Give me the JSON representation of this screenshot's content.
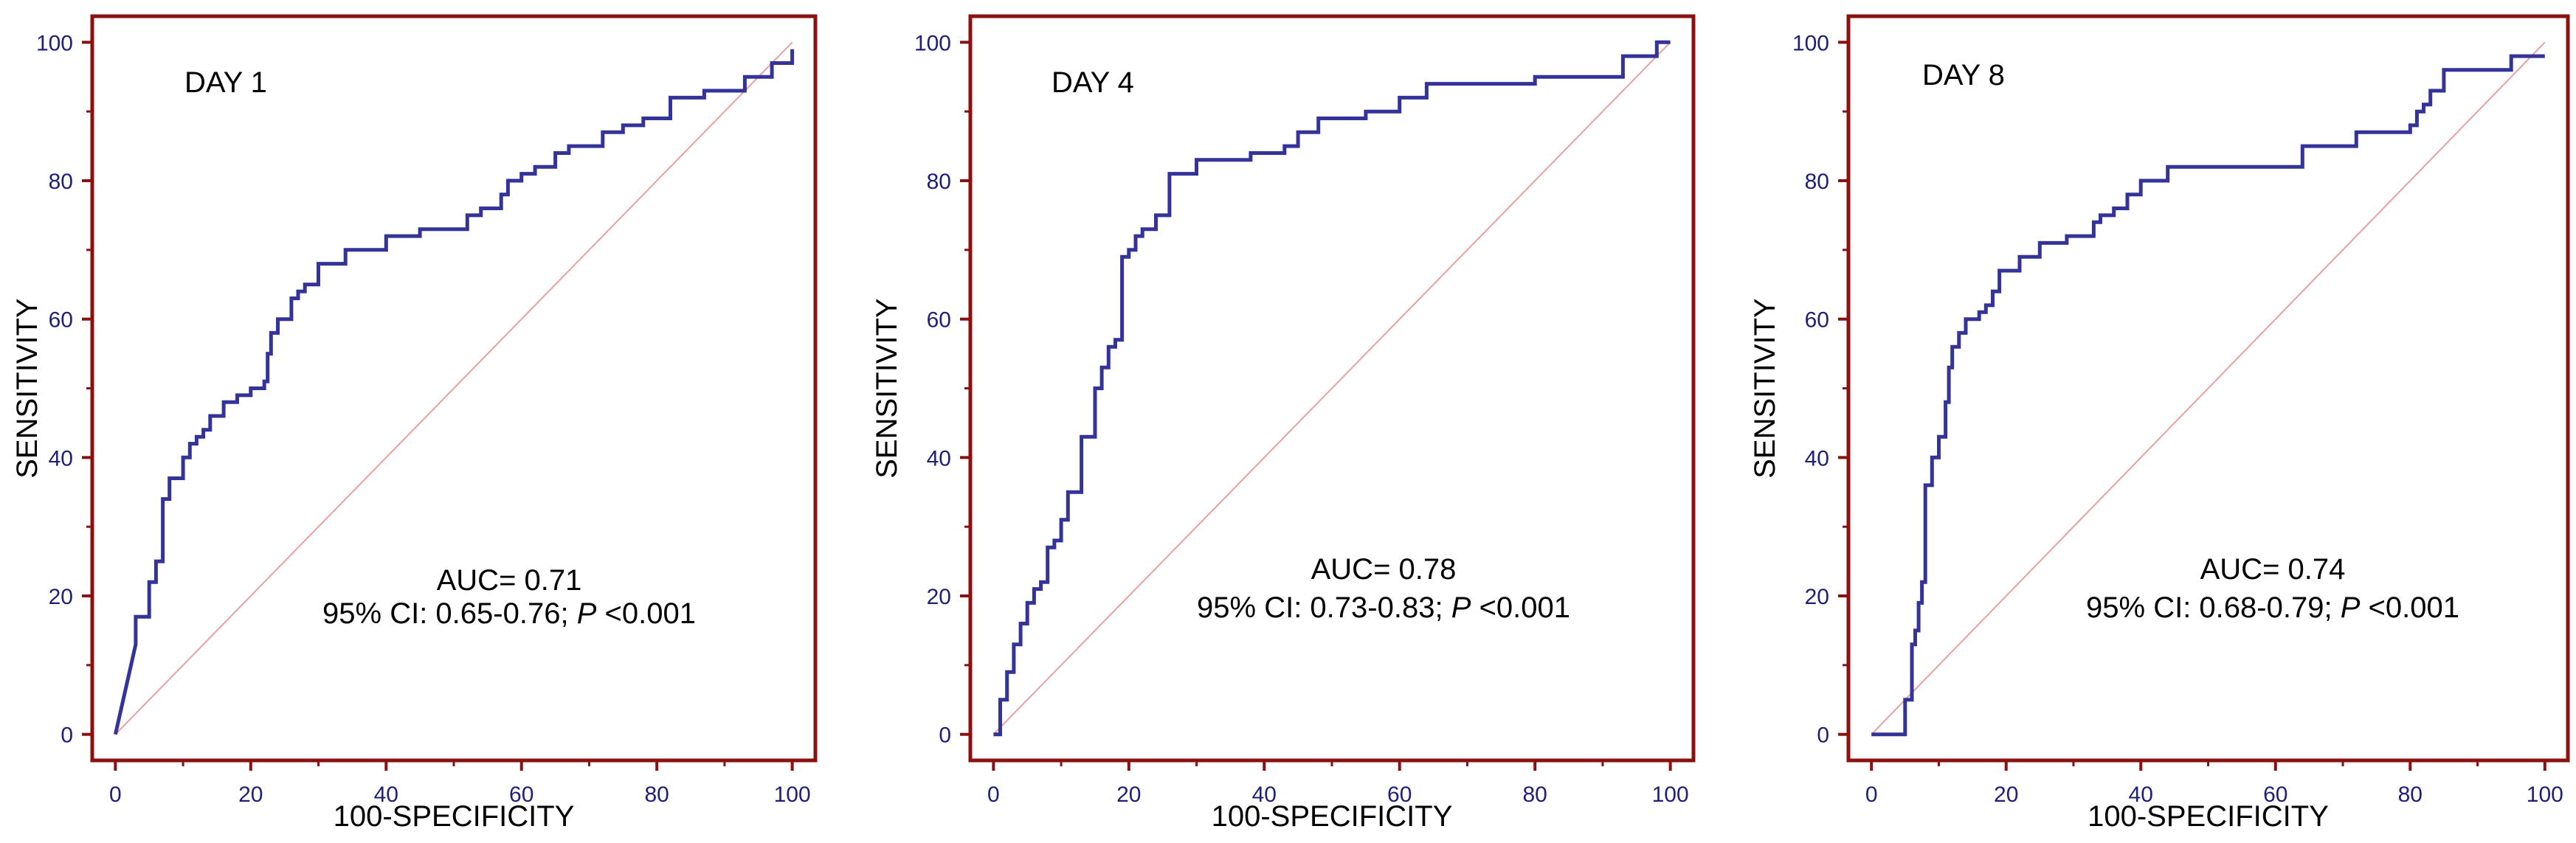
{
  "chart_data": [
    {
      "type": "line",
      "title": "DAY 1",
      "xlabel": "100-SPECIFICITY",
      "ylabel": "SENSITIVITY",
      "xlim": [
        0,
        100
      ],
      "ylim": [
        0,
        100
      ],
      "xticks": [
        "0",
        "20",
        "40",
        "60",
        "80",
        "100"
      ],
      "yticks": [
        "0",
        "20",
        "40",
        "60",
        "80",
        "100"
      ],
      "annotation_line1": "AUC= 0.71",
      "annotation_line2_prefix": "95% CI: 0.65-0.76;",
      "annotation_p_symbol": "P",
      "annotation_p_value": "<0.001",
      "reference_line": true,
      "series": [
        {
          "x": [
            0,
            3,
            3,
            5,
            5,
            6,
            6,
            7,
            7,
            8,
            8,
            10,
            10,
            11,
            11,
            12,
            12,
            13,
            13,
            14,
            14,
            16,
            16,
            18,
            18,
            20,
            20,
            22,
            22,
            22.5,
            22.5,
            23,
            23,
            24,
            24,
            26,
            26,
            27,
            27,
            28,
            28,
            30,
            30,
            34,
            34,
            36,
            36,
            40,
            40,
            45,
            45,
            52,
            52,
            54,
            54,
            57,
            57,
            58,
            58,
            60,
            60,
            62,
            62,
            65,
            65,
            67,
            67,
            72,
            72,
            75,
            75,
            78,
            78,
            82,
            82,
            87,
            87,
            93,
            93,
            97,
            97,
            100,
            100
          ],
          "y": [
            0,
            13,
            17,
            17,
            22,
            22,
            25,
            25,
            34,
            34,
            37,
            37,
            40,
            40,
            42,
            42,
            43,
            43,
            44,
            44,
            46,
            46,
            48,
            48,
            49,
            49,
            50,
            50,
            51,
            51,
            55,
            55,
            58,
            58,
            60,
            60,
            63,
            63,
            64,
            64,
            65,
            65,
            68,
            68,
            70,
            70,
            70,
            70,
            72,
            72,
            73,
            73,
            75,
            75,
            76,
            76,
            78,
            78,
            80,
            80,
            81,
            81,
            82,
            82,
            84,
            84,
            85,
            85,
            87,
            87,
            88,
            88,
            89,
            89,
            92,
            92,
            93,
            93,
            95,
            95,
            97,
            97,
            99
          ]
        }
      ]
    },
    {
      "type": "line",
      "title": "DAY 4",
      "xlabel": "100-SPECIFICITY",
      "ylabel": "SENSITIVITY",
      "xlim": [
        0,
        100
      ],
      "ylim": [
        0,
        100
      ],
      "xticks": [
        "0",
        "20",
        "40",
        "60",
        "80",
        "100"
      ],
      "yticks": [
        "0",
        "20",
        "40",
        "60",
        "80",
        "100"
      ],
      "annotation_line1": "AUC= 0.78",
      "annotation_line2_prefix": "95% CI: 0.73-0.83;",
      "annotation_p_symbol": "P",
      "annotation_p_value": "<0.001",
      "reference_line": true,
      "series": [
        {
          "x": [
            0,
            1,
            1,
            2,
            2,
            3,
            3,
            4,
            4,
            5,
            5,
            6,
            6,
            7,
            7,
            8,
            8,
            9,
            9,
            10,
            10,
            11,
            11,
            13,
            13,
            15,
            15,
            16,
            16,
            17,
            17,
            18,
            18,
            19,
            19,
            20,
            20,
            21,
            21,
            22,
            22,
            24,
            24,
            26,
            26,
            30,
            30,
            38,
            38,
            43,
            43,
            45,
            45,
            48,
            48,
            55,
            55,
            60,
            60,
            64,
            64,
            80,
            80,
            93,
            93,
            98,
            98,
            100
          ],
          "y": [
            0,
            0,
            5,
            5,
            9,
            9,
            13,
            13,
            16,
            16,
            19,
            19,
            21,
            21,
            22,
            22,
            27,
            27,
            28,
            28,
            31,
            31,
            35,
            35,
            43,
            43,
            50,
            50,
            53,
            53,
            56,
            56,
            57,
            57,
            69,
            69,
            70,
            70,
            72,
            72,
            73,
            73,
            75,
            75,
            81,
            81,
            83,
            83,
            84,
            84,
            85,
            85,
            87,
            87,
            89,
            89,
            90,
            90,
            92,
            92,
            94,
            94,
            95,
            95,
            98,
            98,
            100,
            100
          ]
        }
      ]
    },
    {
      "type": "line",
      "title": "DAY 8",
      "xlabel": "100-SPECIFICITY",
      "ylabel": "SENSITIVITY",
      "xlim": [
        0,
        100
      ],
      "ylim": [
        0,
        100
      ],
      "xticks": [
        "0",
        "20",
        "40",
        "60",
        "80",
        "100"
      ],
      "yticks": [
        "0",
        "20",
        "40",
        "60",
        "80",
        "100"
      ],
      "annotation_line1": "AUC= 0.74",
      "annotation_line2_prefix": "95% CI: 0.68-0.79;",
      "annotation_p_symbol": "P",
      "annotation_p_value": "<0.001",
      "reference_line": true,
      "series": [
        {
          "x": [
            0,
            5,
            5,
            6,
            6,
            6.5,
            6.5,
            7,
            7,
            7.5,
            7.5,
            8,
            8,
            9,
            9,
            10,
            10,
            11,
            11,
            11.5,
            11.5,
            12,
            12,
            13,
            13,
            14,
            14,
            16,
            16,
            17,
            17,
            18,
            18,
            19,
            19,
            22,
            22,
            25,
            25,
            29,
            29,
            33,
            33,
            34,
            34,
            36,
            36,
            38,
            38,
            40,
            40,
            44,
            44,
            64,
            64,
            72,
            72,
            80,
            80,
            81,
            81,
            82,
            82,
            83,
            83,
            85,
            85,
            95,
            95,
            100
          ],
          "y": [
            0,
            0,
            5,
            5,
            13,
            13,
            15,
            15,
            19,
            19,
            22,
            22,
            36,
            36,
            40,
            40,
            43,
            43,
            48,
            48,
            53,
            53,
            56,
            56,
            58,
            58,
            60,
            60,
            61,
            61,
            62,
            62,
            64,
            64,
            67,
            67,
            69,
            69,
            71,
            71,
            72,
            72,
            74,
            74,
            75,
            75,
            76,
            76,
            78,
            78,
            80,
            80,
            82,
            82,
            85,
            85,
            87,
            87,
            88,
            88,
            90,
            90,
            91,
            91,
            93,
            93,
            96,
            96,
            98,
            98
          ]
        }
      ]
    }
  ]
}
